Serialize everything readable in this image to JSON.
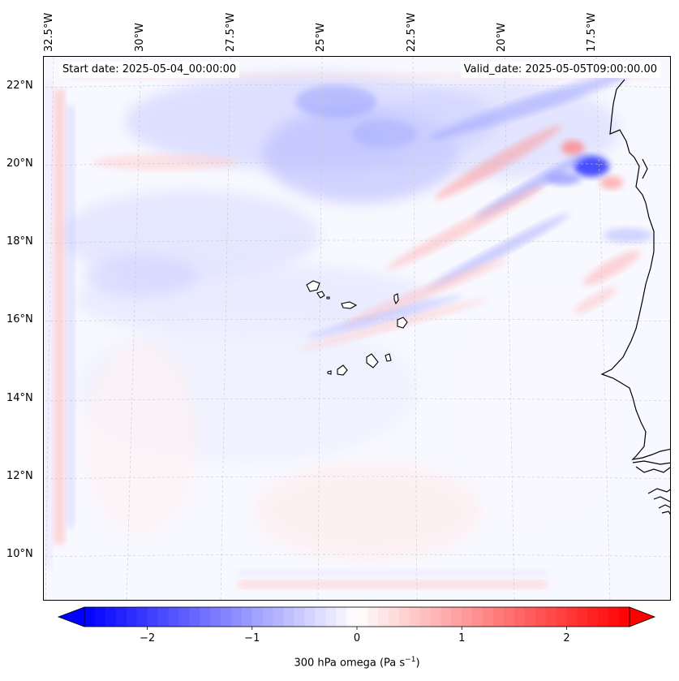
{
  "map": {
    "start_date": "Start date: 2025-05-04_00:00:00",
    "valid_date": "Valid_date: 2025-05-05T09:00:00.00",
    "lon_labels": [
      "32.5°W",
      "30°W",
      "27.5°W",
      "25°W",
      "22.5°W",
      "20°W",
      "17.5°W"
    ],
    "lat_labels": [
      "22°N",
      "20°N",
      "18°N",
      "16°N",
      "14°N",
      "12°N",
      "10°N"
    ],
    "coastline_color": "#000000",
    "gridline_color": "#c0c0c0"
  },
  "colorbar": {
    "ticks": [
      "−2",
      "−1",
      "0",
      "1",
      "2"
    ],
    "tick_values": [
      -2,
      -1,
      0,
      1,
      2
    ],
    "range": [
      -2.6,
      2.6
    ],
    "negative_color": "#0000ff",
    "zero_color": "#ffffff",
    "positive_color": "#ff0000",
    "title_text": "300 hPa omega (Pa s",
    "title_exponent": "−1",
    "title_close": ")"
  }
}
